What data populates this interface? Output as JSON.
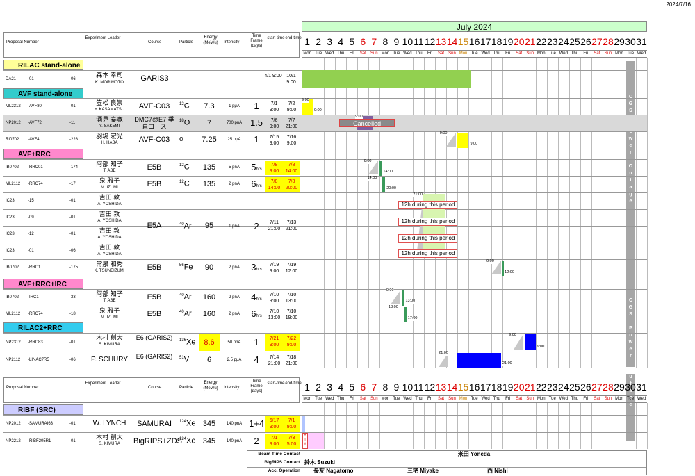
{
  "date_stamp": "2024/7/16",
  "month_title": "July 2024",
  "headers": {
    "proposal": "Proposal Number",
    "leader": "Experiment Leader",
    "course": "Course",
    "particle": "Particle",
    "energy": "Energy (MeV/u)",
    "intensity": "Intensity",
    "timeframe": "Time Frame (days)",
    "start": "start-time",
    "end": "end-time"
  },
  "days": [
    "1",
    "2",
    "3",
    "4",
    "5",
    "6",
    "7",
    "8",
    "9",
    "10",
    "11",
    "12",
    "13",
    "14",
    "15",
    "16",
    "17",
    "18",
    "19",
    "20",
    "21",
    "22",
    "23",
    "24",
    "25",
    "26",
    "27",
    "28",
    "29",
    "30",
    "31"
  ],
  "dows": [
    "Mon",
    "Tue",
    "Wed",
    "Thu",
    "Fri",
    "Sat",
    "Sun",
    "Mon",
    "Tue",
    "Wed",
    "Thu",
    "Fri",
    "Sat",
    "Sun",
    "Mon",
    "Tue",
    "Wed",
    "Thu",
    "Fri",
    "Sat",
    "Sun",
    "Mon",
    "Tue",
    "Wed",
    "Thu",
    "Fri",
    "Sat",
    "Sun",
    "Mon",
    "Tue",
    "Wed"
  ],
  "sections": {
    "rilac": "RILAC stand-alone",
    "avf": "AVF stand-alone",
    "avfrrc": "AVF+RRC",
    "avfrrcirc": "AVF+RRC+IRC",
    "rilac2rrc": "RILAC2+RRC",
    "ribf": "RIBF (SRC)"
  },
  "rows": {
    "da21": {
      "p1": "DA21",
      "p2": "-01",
      "p3": "-06",
      "jp": "森本 幸司",
      "en": "K. MORIMOTO",
      "course": "GARIS3",
      "start": "4/1 9:00",
      "end": "10/1 9:00"
    },
    "ml2312": {
      "p1": "ML2312",
      "p2": "-AVF80",
      "p3": "-01",
      "jp": "笠松 良崇",
      "en": "Y. KASAMATSU",
      "course": "AVF-C03",
      "pm": "12",
      "pe": "C",
      "energy": "7.3",
      "int": "1 pμA",
      "days": "1",
      "start": "7/1 9:00",
      "end": "7/2 9:00"
    },
    "np2012": {
      "p1": "NP2012",
      "p2": "-AVF72",
      "p3": "-11",
      "jp": "酒見 泰寛",
      "en": "Y. SAKEMI",
      "course": "DMC7@E7 垂直コース",
      "pm": "18",
      "pe": "O",
      "energy": "7",
      "int": "700 pnA",
      "days": "1.5",
      "start": "7/6 9:00",
      "end": "7/7 21:00"
    },
    "ri0702": {
      "p1": "RI0702",
      "p2": "-AVF4",
      "p3": "-228",
      "jp": "羽場 宏光",
      "en": "H. HABA",
      "course": "AVF-C03",
      "pe": "α",
      "energy": "7.25",
      "int": "25 pμA",
      "days": "1",
      "start": "7/15 9:00",
      "end": "7/16 9:00"
    },
    "ib0702a": {
      "p1": "IB0702",
      "p2": "-RRC01",
      "p3": "-174",
      "jp": "阿部 知子",
      "en": "T. ABE",
      "course": "E5B",
      "pm": "12",
      "pe": "C",
      "energy": "135",
      "int": "5 pnA",
      "days": "5",
      "unit": "hrs",
      "start": "7/8 9:00",
      "end": "7/8 14:00"
    },
    "ml2112a": {
      "p1": "ML2112",
      "p2": "-RRC74",
      "p3": "-17",
      "jp": "泉 雅子",
      "en": "M. IZUMI",
      "course": "E5B",
      "pm": "12",
      "pe": "C",
      "energy": "135",
      "int": "2 pnA",
      "days": "6",
      "unit": "hrs",
      "start": "7/8 14:00",
      "end": "7/8 20:00"
    },
    "ic1": {
      "p1": "IC23",
      "p2": "-15",
      "p3": "-01",
      "jp": "吉田 敦",
      "en": "A. YOSHIDA"
    },
    "ic2": {
      "p1": "IC23",
      "p2": "-09",
      "p3": "-01",
      "jp": "吉田 敦",
      "en": "A. YOSHIDA"
    },
    "ic3": {
      "p1": "IC23",
      "p2": "-12",
      "p3": "-01",
      "jp": "吉田 敦",
      "en": "A. YOSHIDA"
    },
    "ic4": {
      "p1": "IC23",
      "p2": "-01",
      "p3": "-06",
      "jp": "吉田 敦",
      "en": "A. YOSHIDA"
    },
    "icgroup": {
      "course": "E5A",
      "pm": "40",
      "pe": "Ar",
      "energy": "95",
      "int": "1 pnA",
      "days": "2",
      "start": "7/11 21:00",
      "end": "7/13 21:00"
    },
    "ib0702b": {
      "p1": "IB0702",
      "p2": "-RRC1",
      "p3": "-175",
      "jp": "常泉 和秀",
      "en": "K. TSUNEIZUMI",
      "course": "E5B",
      "pm": "56",
      "pe": "Fe",
      "energy": "90",
      "int": "2 pnA",
      "days": "3",
      "unit": "hrs",
      "start": "7/19 9:00",
      "end": "7/19 12:00"
    },
    "ib0702c": {
      "p1": "IB0702",
      "p2": "-IRC1",
      "p3": "-33",
      "jp": "阿部 知子",
      "en": "T. ABE",
      "course": "E5B",
      "pm": "40",
      "pe": "Ar",
      "energy": "160",
      "int": "2 pnA",
      "days": "4",
      "unit": "hrs",
      "start": "7/10 9:00",
      "end": "7/10 13:00"
    },
    "ml2112b": {
      "p1": "ML2112",
      "p2": "-RRC74",
      "p3": "-18",
      "jp": "泉 雅子",
      "en": "M. IZUMI",
      "course": "E5B",
      "pm": "40",
      "pe": "Ar",
      "energy": "160",
      "int": "2 pnA",
      "days": "6",
      "unit": "hrs",
      "start": "7/10 13:00",
      "end": "7/10 19:00"
    },
    "np2312": {
      "p1": "NP2312",
      "p2": "-RRC83",
      "p3": "-01",
      "jp": "木村 創大",
      "en": "S. KIMURA",
      "course": "E6 (GARIS2)",
      "pm": "136",
      "pe": "Xe",
      "energy": "8.6",
      "int": "50 pnA",
      "days": "1",
      "start": "7/21 9:00",
      "end": "7/22 9:00"
    },
    "np2112": {
      "p1": "NP2112",
      "p2": "-LINAC7R5",
      "p3": "-06",
      "jp": "P. SCHURY",
      "course": "E6 (GARIS2)",
      "pm": "51",
      "pe": "V",
      "energy": "6",
      "int": "2.5 pμA",
      "days": "4",
      "start": "7/14 21:00",
      "end": "7/18 21:00"
    },
    "np2012b": {
      "p1": "NP2012",
      "p2": "-SAMURAI63",
      "p3": "-01",
      "jp": "W. LYNCH",
      "course": "SAMURAI",
      "pm": "124",
      "pe": "Xe",
      "energy": "345",
      "int": "140 pnA",
      "days": "1+4",
      "start": "6/17 9:00",
      "end": "7/1 9:00"
    },
    "np2212": {
      "p1": "NP2212",
      "p2": "-RIBF205R1",
      "p3": "-01",
      "jp": "木村 創大",
      "en": "S. KIMURA",
      "course": "BigRIPS+ZDS",
      "pm": "124",
      "pe": "Xe",
      "energy": "345",
      "int": "140 pnA",
      "days": "2",
      "start": "7/1 9:00",
      "end": "7/3 5:00"
    }
  },
  "gantt": {
    "cancelled": "Cancelled",
    "period_note": "12h during this period",
    "t900": "9:00",
    "t1400": "14:00",
    "t2000": "20:00",
    "t2100": "21:00",
    "t1200": "12:00",
    "t1300": "13:00",
    "t1700": "17:00",
    "outage": "CGS Power Outage",
    "btm": "BTM"
  },
  "contacts": {
    "beam_label": "Beam Time Contact",
    "beam_name": "米田 Yoneda",
    "bigrips_label": "BigRIPS Contact",
    "bigrips_name": "鈴木 Suzuki",
    "acc_label": "Acc. Operation",
    "acc1": "長友 Nagatomo",
    "acc2": "三宅 Miyake",
    "acc3": "西 Nishi"
  },
  "colors": {
    "rilac": "#ffff99",
    "avf": "#33cccc",
    "avfrrc": "#ff88cc",
    "rilac2": "#33ccee",
    "ribf": "#ccccff",
    "yellow": "#ffff00",
    "green": "#92d050",
    "blue": "#0000ff",
    "purple": "#8060a0",
    "lightgreen": "#d8f5b0",
    "pink": "#ffccff",
    "grey": "#d9d9d9",
    "outage": "#a6a6a6"
  }
}
